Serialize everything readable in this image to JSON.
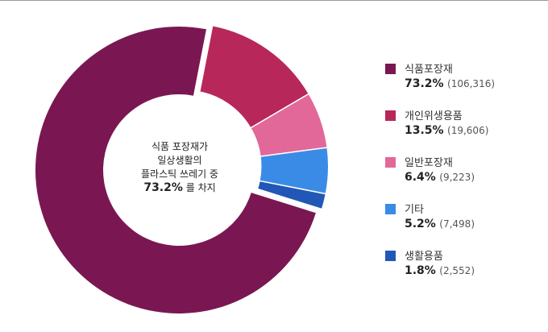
{
  "chart_data": {
    "type": "pie",
    "categories": [
      "식품포장재",
      "개인위생용품",
      "일반포장재",
      "기타",
      "생활용품"
    ],
    "series": [
      {
        "values": [
          106316,
          19606,
          9223,
          7498,
          2552
        ],
        "percent_labels": [
          "73.2%",
          "13.5%",
          "6.4%",
          "5.2%",
          "1.8%"
        ],
        "count_labels": [
          "(106,316)",
          "(19,606)",
          "(9,223)",
          "(7,498)",
          "(2,552)"
        ]
      }
    ],
    "colors": [
      "#7a1752",
      "#b8275a",
      "#e2689a",
      "#3a8be6",
      "#2258b5"
    ],
    "center_text": {
      "line1": "식품 포장재가",
      "line2": "일상생활의",
      "line3": "플라스틱 쓰레기 중",
      "pct": "73.2%",
      "suffix": " 를 차지"
    },
    "legend_position": "right"
  }
}
